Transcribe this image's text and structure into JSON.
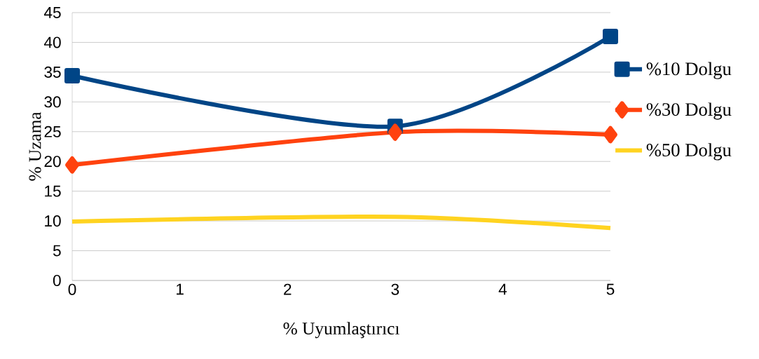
{
  "chart_data": {
    "type": "line",
    "xlabel": "% Uyumlaştırıcı",
    "ylabel": "% Uzama",
    "x": [
      0,
      3,
      5
    ],
    "series": [
      {
        "name": "%10 Dolgu",
        "color": "#004586",
        "marker": "square",
        "values": [
          34.4,
          25.9,
          41.0
        ]
      },
      {
        "name": "%30 Dolgu",
        "color": "#ff420e",
        "marker": "diamond",
        "values": [
          19.4,
          24.9,
          24.5
        ]
      },
      {
        "name": "%50 Dolgu",
        "color": "#ffd320",
        "marker": "none",
        "values": [
          9.9,
          10.7,
          8.8
        ]
      }
    ],
    "xlim": [
      0,
      5
    ],
    "xticks": [
      0,
      1,
      2,
      3,
      4,
      5
    ],
    "ylim": [
      0,
      45
    ],
    "yticks": [
      0,
      5,
      10,
      15,
      20,
      25,
      30,
      35,
      40,
      45
    ],
    "grid": "y",
    "legend": "right",
    "line_style": "solid"
  }
}
